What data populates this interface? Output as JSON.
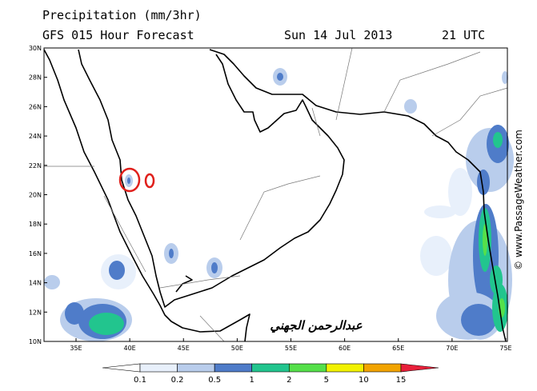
{
  "header": {
    "title": "Precipitation (mm/3hr)",
    "subtitle": "GFS 015 Hour Forecast",
    "date": "Sun 14 Jul 2013",
    "time": "21 UTC"
  },
  "map": {
    "lat_labels": [
      "30N",
      "28N",
      "26N",
      "24N",
      "22N",
      "20N",
      "18N",
      "16N",
      "14N",
      "12N",
      "10N"
    ],
    "lon_labels": [
      "35E",
      "40E",
      "45E",
      "50E",
      "55E",
      "60E",
      "65E",
      "70E",
      "75E"
    ],
    "signature": "عبدالرحمن الجهني",
    "watermark": "© www.PassageWeather.com"
  },
  "legend": {
    "labels": [
      "0.1",
      "0.2",
      "0.5",
      "1",
      "2",
      "5",
      "10",
      "15"
    ],
    "colors": [
      "#ffffff",
      "#e8f0fb",
      "#b9cdec",
      "#4f7cc9",
      "#22c58e",
      "#55e04a",
      "#f2f200",
      "#f2a400",
      "#e8203a"
    ]
  }
}
